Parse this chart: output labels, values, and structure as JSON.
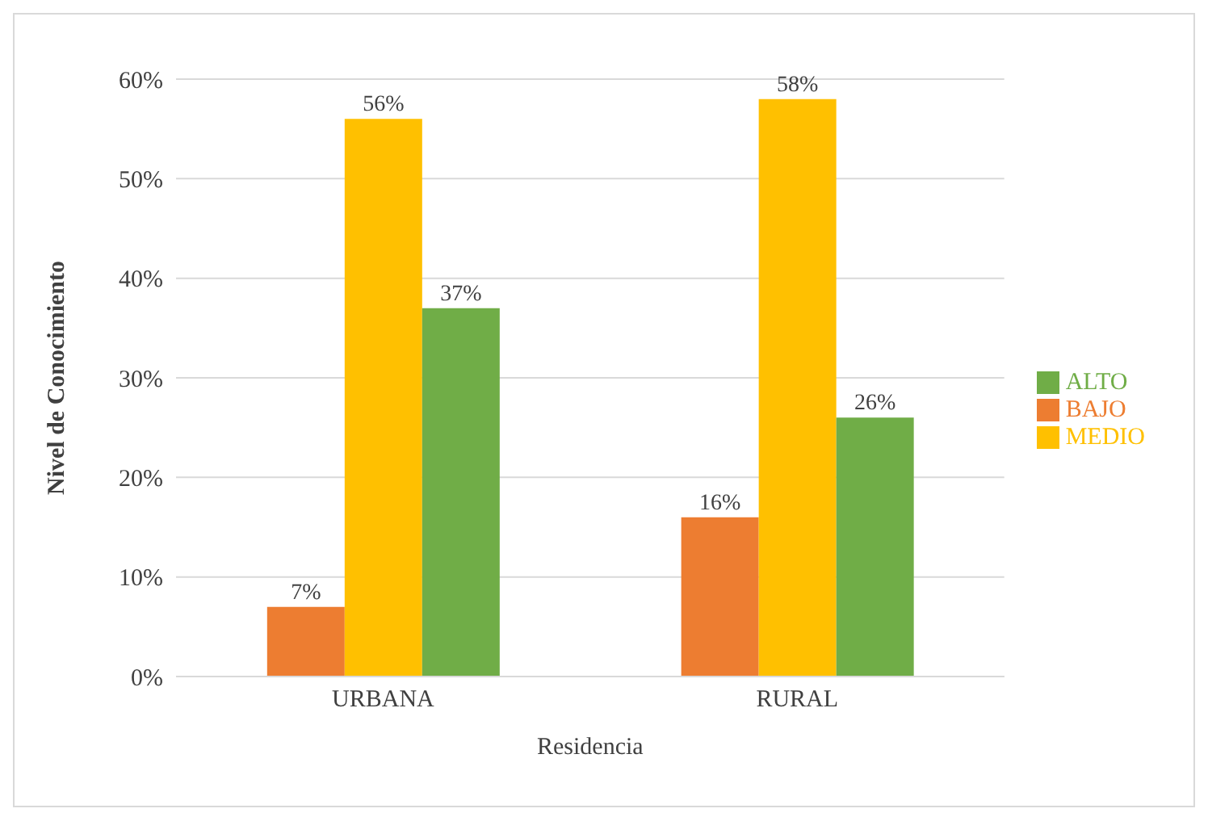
{
  "chart_data": {
    "type": "bar",
    "xlabel": "Residencia",
    "ylabel": "Nivel de Conocimiento",
    "categories": [
      "URBANA",
      "RURAL"
    ],
    "series": [
      {
        "name": "BAJO",
        "color": "#ed7d31",
        "values": [
          7,
          16
        ],
        "value_labels": [
          "7%",
          "16%"
        ]
      },
      {
        "name": "MEDIO",
        "color": "#ffc000",
        "values": [
          56,
          58
        ],
        "value_labels": [
          "56%",
          "58%"
        ]
      },
      {
        "name": "ALTO",
        "color": "#70ad47",
        "values": [
          37,
          26
        ],
        "value_labels": [
          "37%",
          "26%"
        ]
      }
    ],
    "ylim": [
      0,
      60
    ],
    "yticks": [
      {
        "value": 0,
        "label": "0%"
      },
      {
        "value": 10,
        "label": "10%"
      },
      {
        "value": 20,
        "label": "20%"
      },
      {
        "value": 30,
        "label": "30%"
      },
      {
        "value": 40,
        "label": "40%"
      },
      {
        "value": 50,
        "label": "50%"
      },
      {
        "value": 60,
        "label": "60%"
      }
    ],
    "grid": "y",
    "legend": "right"
  }
}
